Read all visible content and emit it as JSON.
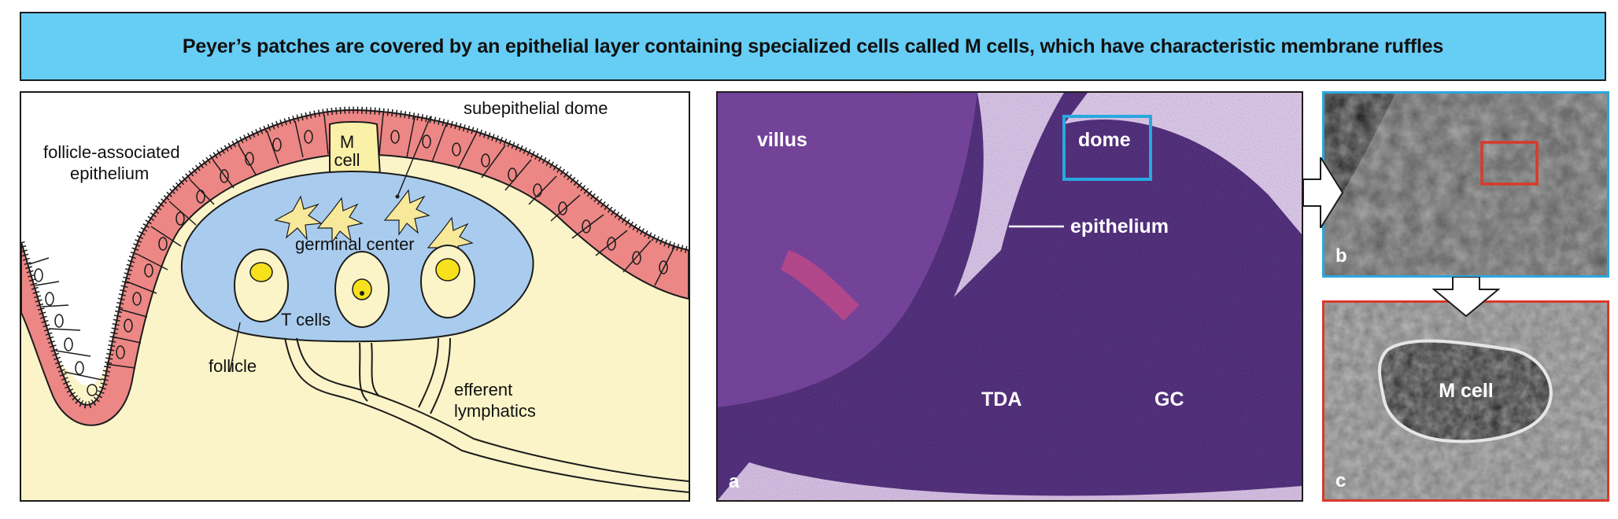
{
  "title": "Peyer’s patches are covered by an epithelial layer containing specialized cells called M cells, which have characteristic membrane ruffles",
  "diagram": {
    "labels": {
      "fae_line1": "follicle-associated",
      "fae_line2": "epithelium",
      "m_line1": "M",
      "m_line2": "cell",
      "dome": "subepithelial dome",
      "gc": "germinal center",
      "tcells": "T cells",
      "follicle": "follicle",
      "eff_line1": "efferent",
      "eff_line2": "lymphatics"
    },
    "colors": {
      "epithelium": "#ec8785",
      "dome": "#a9ccee",
      "tissue": "#fbf4c8",
      "yolk": "#f7e01c",
      "mcell": "#fbf0a8"
    }
  },
  "micrograph": {
    "labels": {
      "villus": "villus",
      "dome": "dome",
      "epithelium": "epithelium",
      "tda": "TDA",
      "gc": "GC",
      "letter": "a"
    }
  },
  "sem_b": {
    "letter": "b"
  },
  "sem_c": {
    "letter": "c",
    "label": "M cell"
  }
}
